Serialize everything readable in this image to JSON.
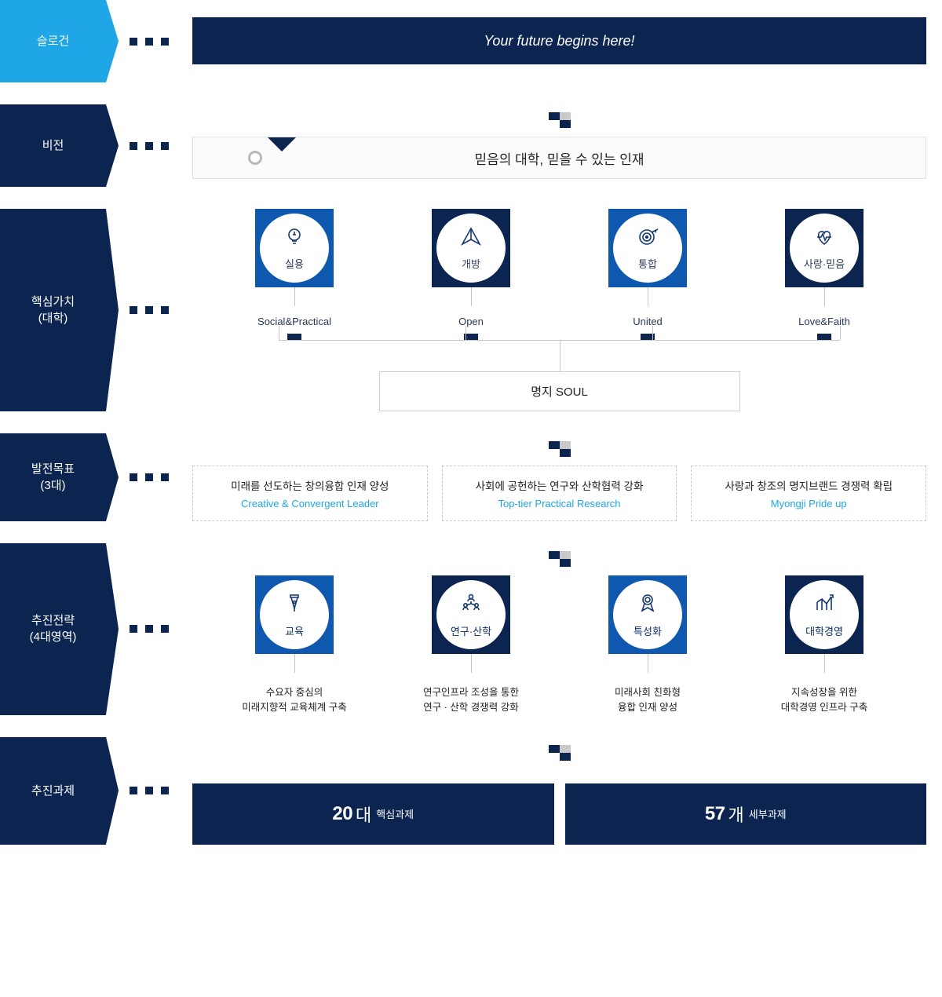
{
  "colors": {
    "navy": "#0b2550",
    "blue": "#0f58b0",
    "cyan": "#1ea6e6",
    "light_grey_border": "#e2e2e2",
    "dashed_border": "#c9c9c9",
    "line": "#c6c6c6",
    "text": "#222222"
  },
  "labels": {
    "slogan": "슬로건",
    "vision": "비전",
    "core_values": "핵심가치\n(대학)",
    "goals": "발전목표\n(3대)",
    "strategies": "추진전략\n(4대영역)",
    "tasks": "추진과제"
  },
  "slogan": {
    "text": "Your future begins here!"
  },
  "vision": {
    "text": "믿음의 대학, 믿을 수 있는 인재"
  },
  "core_values": {
    "acronym_box": "명지 SOUL",
    "items": [
      {
        "kr": "실용",
        "en": "Social&Practical",
        "icon": "bulb",
        "sq_color": "blue"
      },
      {
        "kr": "개방",
        "en": "Open",
        "icon": "plane",
        "sq_color": "navy"
      },
      {
        "kr": "통합",
        "en": "United",
        "icon": "target",
        "sq_color": "blue"
      },
      {
        "kr": "사랑·믿음",
        "en": "Love&Faith",
        "icon": "heart",
        "sq_color": "navy"
      }
    ]
  },
  "goals": [
    {
      "kr": "미래를 선도하는 창의융합 인재 양성",
      "en": "Creative & Convergent Leader"
    },
    {
      "kr": "사회에 공헌하는 연구와 산학협력 강화",
      "en": "Top-tier Practical Research"
    },
    {
      "kr": "사랑과 창조의 명지브랜드 경쟁력 확립",
      "en": "Myongji Pride up"
    }
  ],
  "strategies": [
    {
      "kr": "교육",
      "icon": "pen",
      "sq_color": "blue",
      "desc1": "수요자 중심의",
      "desc2": "미래지향적 교육체계 구축"
    },
    {
      "kr": "연구·산학",
      "icon": "people",
      "sq_color": "navy",
      "desc1": "연구인프라 조성을 통한",
      "desc2": "연구 · 산학 경쟁력 강화"
    },
    {
      "kr": "특성화",
      "icon": "ribbon",
      "sq_color": "blue",
      "desc1": "미래사회 친화형",
      "desc2": "융합 인재 양성"
    },
    {
      "kr": "대학경영",
      "icon": "graph",
      "sq_color": "navy",
      "desc1": "지속성장을 위한",
      "desc2": "대학경영 인프라 구축"
    }
  ],
  "tasks": {
    "a_num": "20",
    "a_unit": "대",
    "a_label": "핵심과제",
    "b_num": "57",
    "b_unit": "개",
    "b_label": "세부과제"
  }
}
